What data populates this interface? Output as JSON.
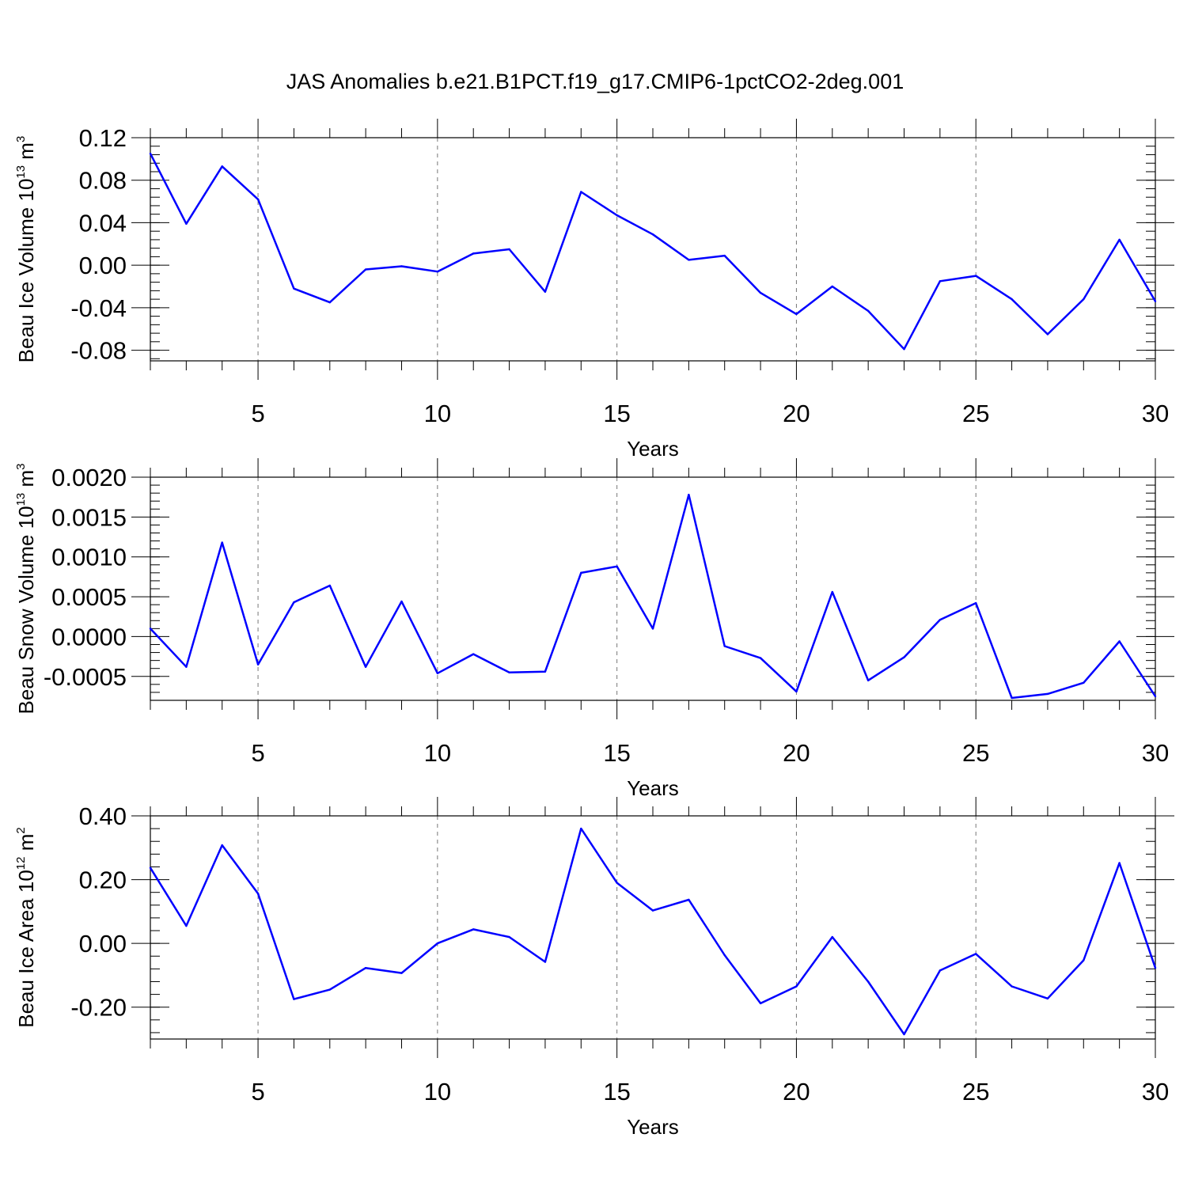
{
  "title": "JAS Anomalies b.e21.B1PCT.f19_g17.CMIP6-1pctCO2-2deg.001",
  "colors": {
    "line": "#0000ff",
    "axis": "#000000",
    "grid": "#777777"
  },
  "chart_data": [
    {
      "type": "line",
      "xlabel": "Years",
      "ylabel": {
        "text": "Beau Ice Volume 10",
        "sup1": "13",
        "unit": " m",
        "sup2": "3"
      },
      "xlim": [
        2,
        30
      ],
      "ylim": [
        -0.09,
        0.12
      ],
      "xticks": [
        5,
        10,
        15,
        20,
        25,
        30
      ],
      "yticks": [
        -0.08,
        -0.04,
        0.0,
        0.04,
        0.08,
        0.12
      ],
      "ytick_labels": [
        "-0.08",
        "-0.04",
        "0.00",
        "0.04",
        "0.08",
        "0.12"
      ],
      "yminor_step": 0.008,
      "grid": "vertical dashed at major x ticks",
      "x": [
        2,
        3,
        4,
        5,
        6,
        7,
        8,
        9,
        10,
        11,
        12,
        13,
        14,
        15,
        16,
        17,
        18,
        19,
        20,
        21,
        22,
        23,
        24,
        25,
        26,
        27,
        28,
        29,
        30
      ],
      "series": [
        {
          "values": [
            0.105,
            0.039,
            0.093,
            0.062,
            -0.022,
            -0.035,
            -0.004,
            -0.001,
            -0.006,
            0.011,
            0.015,
            -0.025,
            0.069,
            0.047,
            0.029,
            0.005,
            0.009,
            -0.026,
            -0.046,
            -0.02,
            -0.043,
            -0.079,
            -0.015,
            -0.01,
            -0.032,
            -0.065,
            -0.032,
            0.024,
            -0.034
          ]
        }
      ]
    },
    {
      "type": "line",
      "xlabel": "Years",
      "ylabel": {
        "text": "Beau Snow Volume 10",
        "sup1": "13",
        "unit": " m",
        "sup2": "3"
      },
      "xlim": [
        2,
        30
      ],
      "ylim": [
        -0.0008,
        0.002
      ],
      "xticks": [
        5,
        10,
        15,
        20,
        25,
        30
      ],
      "yticks": [
        -0.0005,
        0.0,
        0.0005,
        0.001,
        0.0015,
        0.002
      ],
      "ytick_labels": [
        "-0.0005",
        "0.0000",
        "0.0005",
        "0.0010",
        "0.0015",
        "0.0020"
      ],
      "yminor_step": 0.0001,
      "grid": "vertical dashed at major x ticks",
      "x": [
        2,
        3,
        4,
        5,
        6,
        7,
        8,
        9,
        10,
        11,
        12,
        13,
        14,
        15,
        16,
        17,
        18,
        19,
        20,
        21,
        22,
        23,
        24,
        25,
        26,
        27,
        28,
        29,
        30
      ],
      "series": [
        {
          "values": [
            0.0001,
            -0.00038,
            0.00118,
            -0.00035,
            0.00043,
            0.00064,
            -0.00038,
            0.00044,
            -0.00046,
            -0.00022,
            -0.00045,
            -0.00044,
            0.0008,
            0.00088,
            0.0001,
            0.00178,
            -0.00012,
            -0.00027,
            -0.00069,
            0.00056,
            -0.00055,
            -0.00026,
            0.00021,
            0.00042,
            -0.00077,
            -0.00072,
            -0.00058,
            -6e-05,
            -0.00075
          ]
        }
      ]
    },
    {
      "type": "line",
      "xlabel": "Years",
      "ylabel": {
        "text": "Beau Ice Area 10",
        "sup1": "12",
        "unit": " m",
        "sup2": "2"
      },
      "xlim": [
        2,
        30
      ],
      "ylim": [
        -0.3,
        0.4
      ],
      "xticks": [
        5,
        10,
        15,
        20,
        25,
        30
      ],
      "yticks": [
        -0.2,
        0.0,
        0.2,
        0.4
      ],
      "ytick_labels": [
        "-0.20",
        "0.00",
        "0.20",
        "0.40"
      ],
      "yminor_step": 0.04,
      "grid": "vertical dashed at major x ticks",
      "x": [
        2,
        3,
        4,
        5,
        6,
        7,
        8,
        9,
        10,
        11,
        12,
        13,
        14,
        15,
        16,
        17,
        18,
        19,
        20,
        21,
        22,
        23,
        24,
        25,
        26,
        27,
        28,
        29,
        30
      ],
      "series": [
        {
          "values": [
            0.237,
            0.055,
            0.308,
            0.156,
            -0.175,
            -0.145,
            -0.077,
            -0.093,
            0.0,
            0.044,
            0.02,
            -0.058,
            0.36,
            0.19,
            0.103,
            0.137,
            -0.037,
            -0.188,
            -0.135,
            0.02,
            -0.12,
            -0.285,
            -0.085,
            -0.033,
            -0.135,
            -0.173,
            -0.053,
            0.252,
            -0.077
          ]
        }
      ]
    }
  ]
}
